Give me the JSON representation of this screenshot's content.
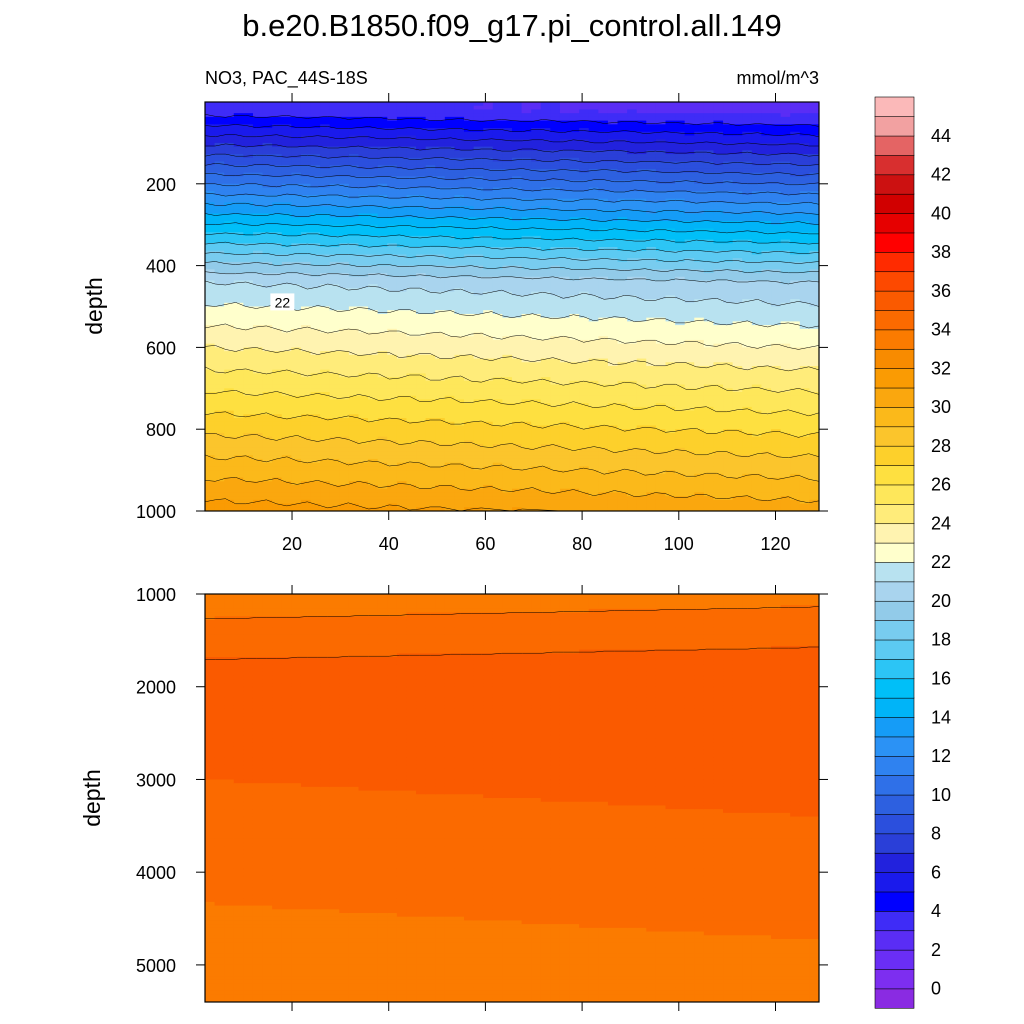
{
  "chart_data": {
    "type": "contour",
    "title": "b.e20.B1850.f09_g17.pi_control.all.149",
    "left_string": "NO3, PAC_44S-18S",
    "right_string": "mmol/m^3",
    "ylabel": "depth",
    "x_ticks": [
      "20",
      "40",
      "60",
      "80",
      "100",
      "120"
    ],
    "top_panel": {
      "depth_range": [
        0,
        1000
      ],
      "x_range": [
        2,
        129
      ],
      "y_ticks": [
        "200",
        "400",
        "600",
        "800",
        "1000"
      ]
    },
    "bottom_panel": {
      "depth_range": [
        1000,
        5400
      ],
      "x_range": [
        2,
        129
      ],
      "y_ticks": [
        "1000",
        "2000",
        "3000",
        "4000",
        "5000"
      ]
    },
    "colorbar": {
      "levels": [
        0,
        1,
        2,
        3,
        4,
        5,
        6,
        7,
        8,
        9,
        10,
        11,
        12,
        13,
        14,
        15,
        16,
        17,
        18,
        19,
        20,
        21,
        22,
        23,
        24,
        25,
        26,
        27,
        28,
        29,
        30,
        31,
        32,
        33,
        34,
        35,
        36,
        37,
        38,
        39,
        40,
        41,
        42,
        43,
        44,
        45
      ],
      "labels": [
        "0",
        "2",
        "4",
        "6",
        "8",
        "10",
        "12",
        "14",
        "16",
        "18",
        "20",
        "22",
        "24",
        "26",
        "28",
        "30",
        "32",
        "34",
        "36",
        "38",
        "40",
        "42",
        "44"
      ],
      "colors": [
        "#8a2be2",
        "#7d2ef0",
        "#6a2ef5",
        "#5a2df5",
        "#3f2cf7",
        "#0000ff",
        "#1a1aec",
        "#2222dd",
        "#2a3fd8",
        "#2b4fdd",
        "#2d60e0",
        "#2f70e8",
        "#2f82f0",
        "#2b92f5",
        "#159cf7",
        "#00b4f8",
        "#00bff8",
        "#2cc5f5",
        "#5ccaf2",
        "#78ccef",
        "#92cbe9",
        "#a9d4ee",
        "#b8e2f0",
        "#ffffcc",
        "#fff3b0",
        "#ffec7a",
        "#fee75a",
        "#fee040",
        "#fdd02b",
        "#fbc52c",
        "#fbb91a",
        "#faa70e",
        "#fa9b03",
        "#f88b00",
        "#fb7b00",
        "#fb6a00",
        "#fa5a00",
        "#fd4900",
        "#ff2b00",
        "#ff0000",
        "#e60000",
        "#d10000",
        "#cc1111",
        "#d82f2f",
        "#e46464",
        "#f2a1a1",
        "#fbb9b9"
      ]
    },
    "contour_labels_top": [
      {
        "x": 18,
        "d": 490,
        "v": "22"
      }
    ],
    "contour_labels_bottom": []
  }
}
